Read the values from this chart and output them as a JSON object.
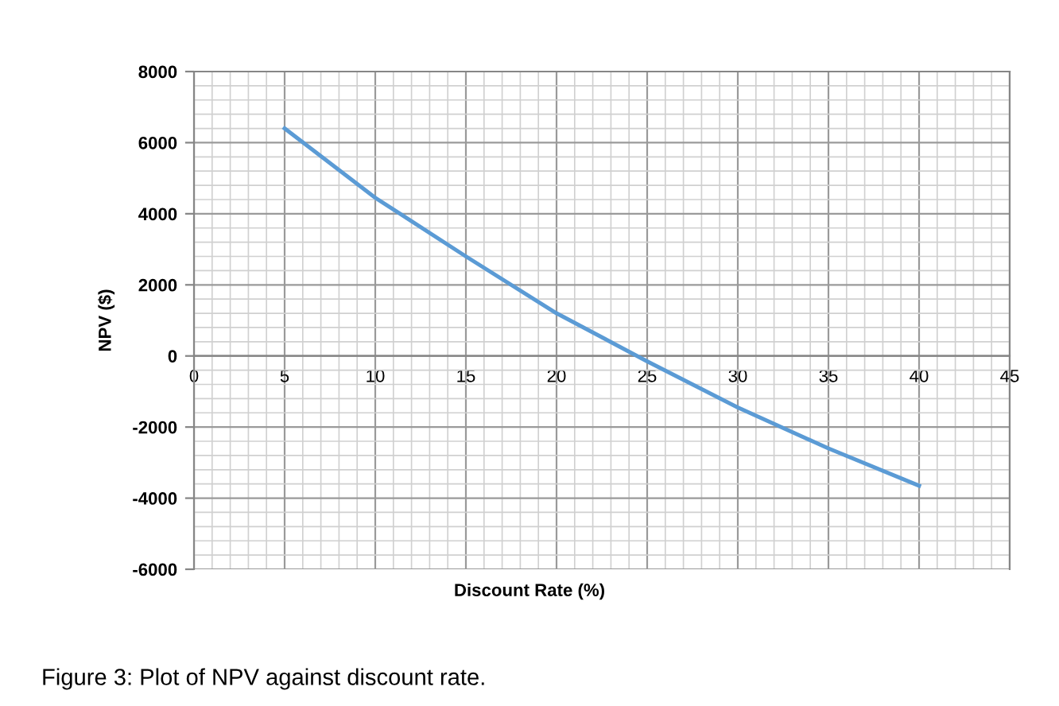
{
  "chart_data": {
    "type": "line",
    "xlabel": "Discount Rate (%)",
    "ylabel": "NPV ($)",
    "x": [
      5,
      10,
      15,
      20,
      25,
      30,
      35,
      40
    ],
    "series": [
      {
        "color": "#5b9bd5",
        "values": [
          6400,
          4450,
          2800,
          1200,
          -150,
          -1450,
          -2600,
          -3650
        ]
      }
    ],
    "xlim": [
      0,
      45
    ],
    "xticks": [
      0,
      5,
      10,
      15,
      20,
      25,
      30,
      35,
      40,
      45
    ],
    "ylim": [
      -6000,
      8000
    ],
    "yticks": [
      -6000,
      -4000,
      -2000,
      0,
      2000,
      4000,
      6000,
      8000
    ],
    "grid": true,
    "marker": "none",
    "line_style": "solid",
    "annotations": [
      "Figure 3: Plot of NPV against discount rate."
    ]
  }
}
